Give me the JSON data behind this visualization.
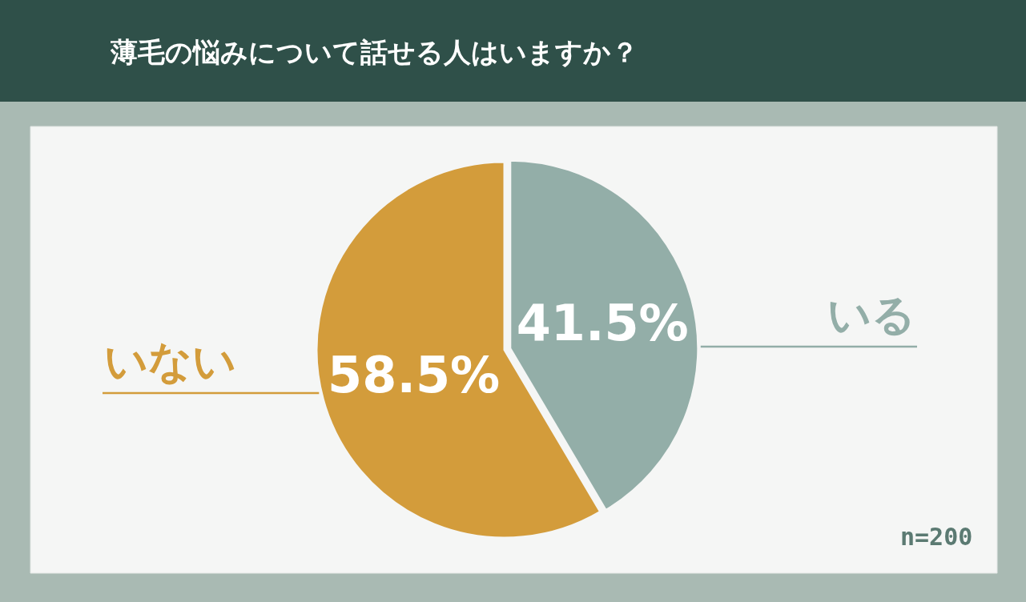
{
  "chart_data": {
    "type": "pie",
    "title": "薄毛の悩みについて話せる人はいますか？",
    "categories": [
      "いる",
      "いない"
    ],
    "values": [
      41.5,
      58.5
    ],
    "colors": [
      "#93aea8",
      "#d39c3b"
    ],
    "value_labels": [
      "41.5%",
      "58.5%"
    ],
    "annotations": [
      "n=200"
    ],
    "legend": false
  }
}
